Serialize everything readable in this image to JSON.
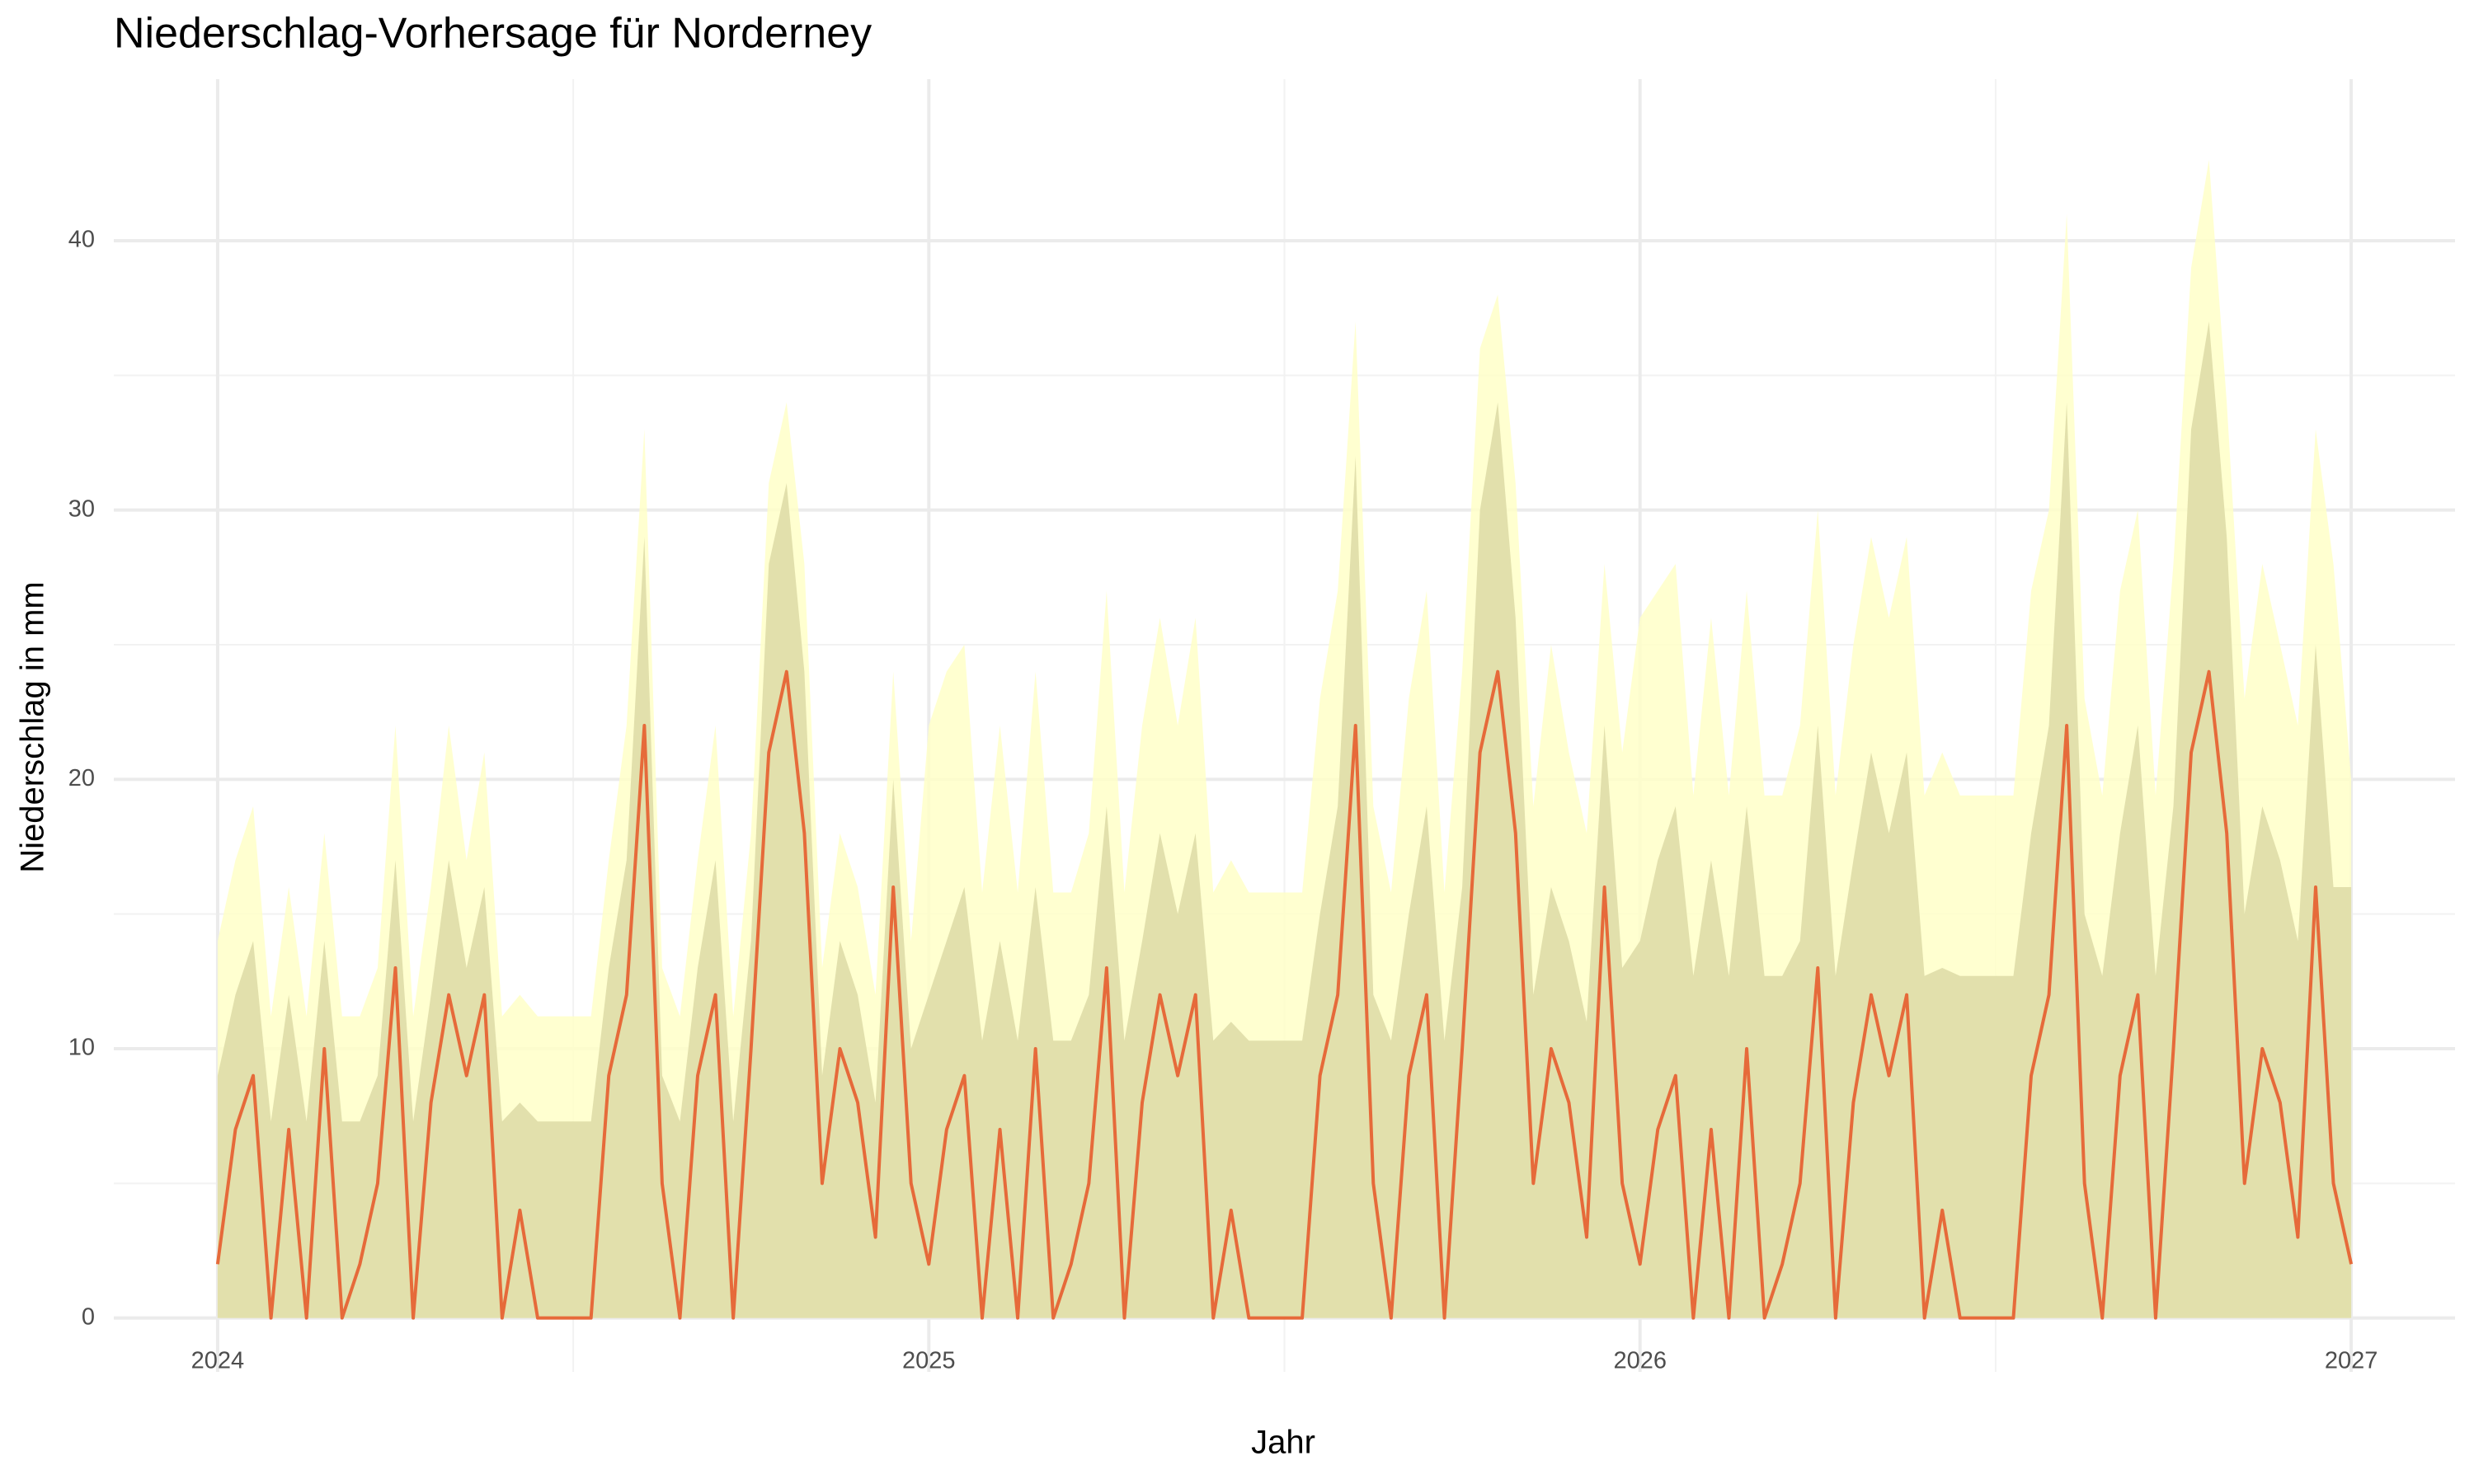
{
  "chart_data": {
    "type": "area",
    "title": "Niederschlag-Vorhersage für Norderney",
    "x_label": "Jahr",
    "y_label": "Niederschlag in mm",
    "xlim": [
      2023.854,
      2027.146
    ],
    "ylim": [
      -2,
      46
    ],
    "xticks": [
      2024,
      2025,
      2026,
      2027
    ],
    "yticks": [
      0,
      10,
      20,
      30,
      40
    ],
    "grid": true,
    "x": [
      2024,
      2024.025,
      2024.05,
      2024.075,
      2024.1,
      2024.125,
      2024.15,
      2024.175,
      2024.2,
      2024.225,
      2024.25,
      2024.275,
      2024.3,
      2024.325,
      2024.35,
      2024.375,
      2024.4,
      2024.425,
      2024.45,
      2024.475,
      2024.5,
      2024.525,
      2024.55,
      2024.575,
      2024.6,
      2024.625,
      2024.65,
      2024.675,
      2024.7,
      2024.725,
      2024.75,
      2024.775,
      2024.8,
      2024.825,
      2024.85,
      2024.875,
      2024.9,
      2024.925,
      2024.95,
      2024.975,
      2025,
      2025.025,
      2025.05,
      2025.075,
      2025.1,
      2025.125,
      2025.15,
      2025.175,
      2025.2,
      2025.225,
      2025.25,
      2025.275,
      2025.3,
      2025.325,
      2025.35,
      2025.375,
      2025.4,
      2025.425,
      2025.45,
      2025.475,
      2025.5,
      2025.525,
      2025.55,
      2025.575,
      2025.6,
      2025.625,
      2025.65,
      2025.675,
      2025.7,
      2025.725,
      2025.75,
      2025.775,
      2025.8,
      2025.825,
      2025.85,
      2025.875,
      2025.9,
      2025.925,
      2025.95,
      2025.975,
      2026,
      2026.025,
      2026.05,
      2026.075,
      2026.1,
      2026.125,
      2026.15,
      2026.175,
      2026.2,
      2026.225,
      2026.25,
      2026.275,
      2026.3,
      2026.325,
      2026.35,
      2026.375,
      2026.4,
      2026.425,
      2026.45,
      2026.475,
      2026.5,
      2026.525,
      2026.55,
      2026.575,
      2026.6,
      2026.625,
      2026.65,
      2026.675,
      2026.7,
      2026.725,
      2026.75,
      2026.775,
      2026.8,
      2026.825,
      2026.85,
      2026.875,
      2026.9,
      2026.925,
      2026.95,
      2026.975,
      2027
    ],
    "series": [
      {
        "type": "area",
        "color": "#ffffc8",
        "values": [
          14,
          17,
          19,
          11.2,
          16,
          11.2,
          18,
          11.2,
          11.2,
          13,
          22,
          11.2,
          16,
          22,
          17,
          21,
          11.2,
          12,
          11.2,
          11.2,
          11.2,
          11.2,
          17,
          22,
          33,
          13,
          11.2,
          17,
          22,
          11.2,
          18,
          31,
          34,
          28,
          13,
          18,
          16,
          12,
          24,
          14,
          22,
          24,
          25,
          15.8,
          22,
          15.8,
          24,
          15.8,
          15.8,
          18,
          27,
          15.8,
          22,
          26,
          22,
          26,
          15.8,
          17,
          15.8,
          15.8,
          15.8,
          15.8,
          23,
          27,
          37,
          19,
          15.8,
          23,
          27,
          15.8,
          24,
          36,
          38,
          31,
          19,
          25,
          21,
          18,
          28,
          21,
          26,
          27,
          28,
          19.4,
          26,
          19.4,
          27,
          19.4,
          19.4,
          22,
          30,
          19.4,
          25,
          29,
          26,
          29,
          19.4,
          21,
          19.4,
          19.4,
          19.4,
          19.4,
          27,
          30,
          41,
          23,
          19.4,
          27,
          30,
          19.4,
          28,
          39,
          43,
          34,
          23,
          28,
          25,
          22,
          33,
          28,
          20
        ]
      },
      {
        "type": "area",
        "color": "#dddba6",
        "values": [
          9,
          12,
          14,
          7.3,
          12,
          7.3,
          14,
          7.3,
          7.3,
          9,
          17,
          7.3,
          12,
          17,
          13,
          16,
          7.3,
          8,
          7.3,
          7.3,
          7.3,
          7.3,
          13,
          17,
          29,
          9,
          7.3,
          13,
          17,
          7.3,
          14,
          28,
          31,
          24,
          9,
          14,
          12,
          8,
          20,
          10,
          12,
          14,
          16,
          10.3,
          14,
          10.3,
          16,
          10.3,
          10.3,
          12,
          19,
          10.3,
          14,
          18,
          15,
          18,
          10.3,
          11,
          10.3,
          10.3,
          10.3,
          10.3,
          15,
          19,
          32,
          12,
          10.3,
          15,
          19,
          10.3,
          16,
          30,
          34,
          26,
          12,
          16,
          14,
          11,
          22,
          13,
          14,
          17,
          19,
          12.7,
          17,
          12.7,
          19,
          12.7,
          12.7,
          14,
          22,
          12.7,
          17,
          21,
          18,
          21,
          12.7,
          13,
          12.7,
          12.7,
          12.7,
          12.7,
          18,
          22,
          34,
          15,
          12.7,
          18,
          22,
          12.7,
          19,
          33,
          37,
          29,
          15,
          19,
          17,
          14,
          25,
          16,
          16
        ]
      },
      {
        "type": "line",
        "color": "#e66a3a",
        "values": [
          2,
          7,
          9,
          0,
          7,
          0,
          10,
          0,
          2,
          5,
          13,
          0,
          8,
          12,
          9,
          12,
          0,
          4,
          0,
          0,
          0,
          0,
          9,
          12,
          22,
          5,
          0,
          9,
          12,
          0,
          10,
          21,
          24,
          18,
          5,
          10,
          8,
          3,
          16,
          5,
          2,
          7,
          9,
          0,
          7,
          0,
          10,
          0,
          2,
          5,
          13,
          0,
          8,
          12,
          9,
          12,
          0,
          4,
          0,
          0,
          0,
          0,
          9,
          12,
          22,
          5,
          0,
          9,
          12,
          0,
          10,
          21,
          24,
          18,
          5,
          10,
          8,
          3,
          16,
          5,
          2,
          7,
          9,
          0,
          7,
          0,
          10,
          0,
          2,
          5,
          13,
          0,
          8,
          12,
          9,
          12,
          0,
          4,
          0,
          0,
          0,
          0,
          9,
          12,
          22,
          5,
          0,
          9,
          12,
          0,
          10,
          21,
          24,
          18,
          5,
          10,
          8,
          3,
          16,
          5,
          2
        ]
      }
    ]
  }
}
